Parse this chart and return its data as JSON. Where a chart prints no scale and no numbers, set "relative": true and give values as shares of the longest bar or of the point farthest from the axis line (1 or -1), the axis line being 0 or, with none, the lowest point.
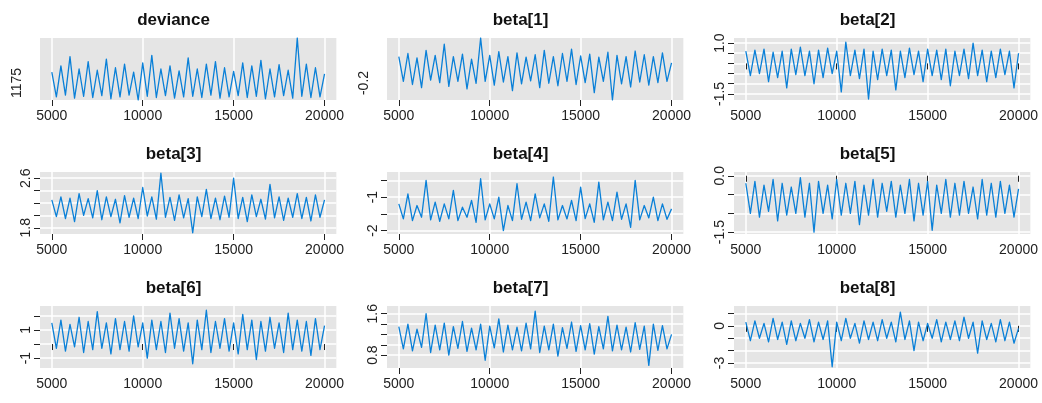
{
  "chart_data": [
    {
      "type": "line",
      "title": "deviance",
      "relative": true,
      "color": "#0a80d8",
      "grid": true,
      "marker": "none",
      "xlim": [
        4350,
        20650
      ],
      "xticks": [
        5000,
        10000,
        15000,
        20000
      ],
      "annotations": [
        "1175"
      ],
      "x": [
        5000,
        5250,
        5500,
        5750,
        6000,
        6250,
        6500,
        6750,
        7000,
        7250,
        7500,
        7750,
        8000,
        8250,
        8500,
        8750,
        9000,
        9250,
        9500,
        9750,
        10000,
        10250,
        10500,
        10750,
        11000,
        11250,
        11500,
        11750,
        12000,
        12250,
        12500,
        12750,
        13000,
        13250,
        13500,
        13750,
        14000,
        14250,
        14500,
        14750,
        15000,
        15250,
        15500,
        15750,
        16000,
        16250,
        16500,
        16750,
        17000,
        17250,
        17500,
        17750,
        18000,
        18250,
        18500,
        18750,
        19000,
        19250,
        19500,
        19750,
        20000
      ],
      "values": [
        0.45,
        0.05,
        0.55,
        0.08,
        0.7,
        0.03,
        0.5,
        0.06,
        0.62,
        0.04,
        0.48,
        0.07,
        0.66,
        0.02,
        0.52,
        0.05,
        0.58,
        0.08,
        0.45,
        0.0,
        0.6,
        0.06,
        0.72,
        0.04,
        0.5,
        0.07,
        0.55,
        0.03,
        0.47,
        0.05,
        0.68,
        0.06,
        0.5,
        0.04,
        0.58,
        0.08,
        0.62,
        0.03,
        0.52,
        0.05,
        0.46,
        0.07,
        0.6,
        0.04,
        0.55,
        0.06,
        0.64,
        0.02,
        0.5,
        0.05,
        0.57,
        0.07,
        0.48,
        0.03,
        1.0,
        0.06,
        0.58,
        0.04,
        0.52,
        0.05,
        0.42
      ]
    },
    {
      "type": "line",
      "title": "beta[1]",
      "relative": true,
      "color": "#0a80d8",
      "grid": true,
      "marker": "none",
      "xlim": [
        4350,
        20650
      ],
      "xticks": [
        5000,
        10000,
        15000,
        20000
      ],
      "annotations": [
        "-0.2"
      ],
      "x": [
        5000,
        5250,
        5500,
        5750,
        6000,
        6250,
        6500,
        6750,
        7000,
        7250,
        7500,
        7750,
        8000,
        8250,
        8500,
        8750,
        9000,
        9250,
        9500,
        9750,
        10000,
        10250,
        10500,
        10750,
        11000,
        11250,
        11500,
        11750,
        12000,
        12250,
        12500,
        12750,
        13000,
        13250,
        13500,
        13750,
        14000,
        14250,
        14500,
        14750,
        15000,
        15250,
        15500,
        15750,
        16000,
        16250,
        16500,
        16750,
        17000,
        17250,
        17500,
        17750,
        18000,
        18250,
        18500,
        18750,
        19000,
        19250,
        19500,
        19750,
        20000
      ],
      "values": [
        0.7,
        0.3,
        0.75,
        0.25,
        0.68,
        0.2,
        0.8,
        0.32,
        0.72,
        0.28,
        0.9,
        0.22,
        0.7,
        0.3,
        0.74,
        0.18,
        0.66,
        0.27,
        1.0,
        0.3,
        0.72,
        0.24,
        0.78,
        0.29,
        0.7,
        0.15,
        0.76,
        0.26,
        0.69,
        0.31,
        0.73,
        0.2,
        0.8,
        0.27,
        0.7,
        0.23,
        0.75,
        0.3,
        0.82,
        0.25,
        0.71,
        0.28,
        0.74,
        0.12,
        0.69,
        0.3,
        0.77,
        0.0,
        0.72,
        0.26,
        0.7,
        0.21,
        0.79,
        0.29,
        0.73,
        0.24,
        0.7,
        0.28,
        0.76,
        0.3,
        0.6
      ]
    },
    {
      "type": "line",
      "title": "beta[2]",
      "color": "#0a80d8",
      "grid": true,
      "marker": "none",
      "xlim": [
        4350,
        20650
      ],
      "xticks": [
        5000,
        10000,
        15000,
        20000
      ],
      "ylim": [
        -1.8,
        1.25
      ],
      "yticks": [
        {
          "value": 1,
          "label": "1.0"
        },
        {
          "value": 0.5,
          "label": null
        },
        {
          "value": 0,
          "label": null
        },
        {
          "value": -0.5,
          "label": null
        },
        {
          "value": -1,
          "label": null
        },
        -1.5
      ],
      "x": [
        5000,
        5250,
        5500,
        5750,
        6000,
        6250,
        6500,
        6750,
        7000,
        7250,
        7500,
        7750,
        8000,
        8250,
        8500,
        8750,
        9000,
        9250,
        9500,
        9750,
        10000,
        10250,
        10500,
        10750,
        11000,
        11250,
        11500,
        11750,
        12000,
        12250,
        12500,
        12750,
        13000,
        13250,
        13500,
        13750,
        14000,
        14250,
        14500,
        14750,
        15000,
        15250,
        15500,
        15750,
        16000,
        16250,
        16500,
        16750,
        17000,
        17250,
        17500,
        17750,
        18000,
        18250,
        18500,
        18750,
        19000,
        19250,
        19500,
        19750,
        20000
      ],
      "values": [
        0.6,
        -0.6,
        0.65,
        -0.5,
        0.7,
        -0.9,
        0.55,
        -0.7,
        0.6,
        -1.2,
        0.7,
        -0.55,
        0.8,
        -0.6,
        0.6,
        -1.0,
        0.65,
        -0.7,
        0.75,
        -0.5,
        0.6,
        -1.4,
        1.05,
        -0.6,
        0.65,
        -0.75,
        0.7,
        -1.75,
        0.6,
        -0.8,
        0.7,
        -0.6,
        0.65,
        -1.3,
        0.6,
        -0.7,
        0.75,
        -0.55,
        0.6,
        -0.9,
        0.7,
        -0.6,
        0.65,
        -0.8,
        0.7,
        -1.1,
        0.6,
        -0.6,
        0.7,
        -0.75,
        1.0,
        -0.6,
        0.65,
        -0.9,
        0.6,
        -0.7,
        0.7,
        -0.55,
        0.6,
        -1.2,
        0.5
      ]
    },
    {
      "type": "line",
      "title": "beta[3]",
      "color": "#0a80d8",
      "grid": true,
      "marker": "none",
      "xlim": [
        4350,
        20650
      ],
      "xticks": [
        5000,
        10000,
        15000,
        20000
      ],
      "ylim": [
        1.7,
        2.7
      ],
      "yticks": [
        2.6,
        {
          "value": 2.4,
          "label": null
        },
        {
          "value": 2.2,
          "label": null
        },
        {
          "value": 2,
          "label": null
        },
        1.8
      ],
      "x": [
        5000,
        5250,
        5500,
        5750,
        6000,
        6250,
        6500,
        6750,
        7000,
        7250,
        7500,
        7750,
        8000,
        8250,
        8500,
        8750,
        9000,
        9250,
        9500,
        9750,
        10000,
        10250,
        10500,
        10750,
        11000,
        11250,
        11500,
        11750,
        12000,
        12250,
        12500,
        12750,
        13000,
        13250,
        13500,
        13750,
        14000,
        14250,
        14500,
        14750,
        15000,
        15250,
        15500,
        15750,
        16000,
        16250,
        16500,
        16750,
        17000,
        17250,
        17500,
        17750,
        18000,
        18250,
        18500,
        18750,
        19000,
        19250,
        19500,
        19750,
        20000
      ],
      "values": [
        2.25,
        1.98,
        2.3,
        1.95,
        2.28,
        1.9,
        2.35,
        2.0,
        2.27,
        1.96,
        2.4,
        1.93,
        2.3,
        1.98,
        2.26,
        1.88,
        2.32,
        1.97,
        2.28,
        1.95,
        2.45,
        1.99,
        2.3,
        1.94,
        2.68,
        1.97,
        2.29,
        1.92,
        2.33,
        1.96,
        2.27,
        1.72,
        2.3,
        1.98,
        2.42,
        1.95,
        2.28,
        1.93,
        2.31,
        1.97,
        2.6,
        1.95,
        2.29,
        1.9,
        2.33,
        1.98,
        2.26,
        1.94,
        2.5,
        1.96,
        2.3,
        1.92,
        2.28,
        1.97,
        2.35,
        1.95,
        2.29,
        1.91,
        2.33,
        1.97,
        2.25
      ]
    },
    {
      "type": "line",
      "title": "beta[4]",
      "color": "#0a80d8",
      "grid": true,
      "marker": "none",
      "xlim": [
        4350,
        20650
      ],
      "xticks": [
        5000,
        10000,
        15000,
        20000
      ],
      "ylim": [
        -2.1,
        -0.25
      ],
      "yticks": [
        {
          "value": -0.5,
          "label": null
        },
        -1,
        {
          "value": -1.5,
          "label": null
        },
        -2
      ],
      "x": [
        5000,
        5250,
        5500,
        5750,
        6000,
        6250,
        6500,
        6750,
        7000,
        7250,
        7500,
        7750,
        8000,
        8250,
        8500,
        8750,
        9000,
        9250,
        9500,
        9750,
        10000,
        10250,
        10500,
        10750,
        11000,
        11250,
        11500,
        11750,
        12000,
        12250,
        12500,
        12750,
        13000,
        13250,
        13500,
        13750,
        14000,
        14250,
        14500,
        14750,
        15000,
        15250,
        15500,
        15750,
        16000,
        16250,
        16500,
        16750,
        17000,
        17250,
        17500,
        17750,
        18000,
        18250,
        18500,
        18750,
        19000,
        19250,
        19500,
        19750,
        20000
      ],
      "values": [
        -1.2,
        -1.65,
        -0.9,
        -1.7,
        -1.25,
        -1.6,
        -0.5,
        -1.68,
        -1.15,
        -1.72,
        -1.2,
        -1.65,
        -0.8,
        -1.7,
        -1.3,
        -1.6,
        -1.1,
        -1.75,
        -0.45,
        -1.68,
        -1.2,
        -1.65,
        -1.0,
        -2.0,
        -1.25,
        -1.7,
        -0.6,
        -1.66,
        -1.15,
        -1.7,
        -0.9,
        -1.62,
        -1.2,
        -1.72,
        -0.4,
        -1.68,
        -1.25,
        -1.65,
        -1.1,
        -1.7,
        -0.7,
        -1.64,
        -1.2,
        -1.75,
        -0.55,
        -1.68,
        -1.15,
        -1.7,
        -0.85,
        -1.66,
        -1.2,
        -1.9,
        -0.5,
        -1.68,
        -1.25,
        -1.62,
        -1.0,
        -1.7,
        -1.2,
        -1.66,
        -1.35
      ]
    },
    {
      "type": "line",
      "title": "beta[5]",
      "color": "#0a80d8",
      "grid": true,
      "marker": "none",
      "xlim": [
        4350,
        20650
      ],
      "xticks": [
        5000,
        10000,
        15000,
        20000
      ],
      "ylim": [
        -1.55,
        0.1
      ],
      "yticks": [
        {
          "value": 0,
          "label": "0.0"
        },
        {
          "value": -0.5,
          "label": null
        },
        {
          "value": -1,
          "label": null
        },
        -1.5
      ],
      "x": [
        5000,
        5250,
        5500,
        5750,
        6000,
        6250,
        6500,
        6750,
        7000,
        7250,
        7500,
        7750,
        8000,
        8250,
        8500,
        8750,
        9000,
        9250,
        9500,
        9750,
        10000,
        10250,
        10500,
        10750,
        11000,
        11250,
        11500,
        11750,
        12000,
        12250,
        12500,
        12750,
        13000,
        13250,
        13500,
        13750,
        14000,
        14250,
        14500,
        14750,
        15000,
        15250,
        15500,
        15750,
        16000,
        16250,
        16500,
        16750,
        17000,
        17250,
        17500,
        17750,
        18000,
        18250,
        18500,
        18750,
        19000,
        19250,
        19500,
        19750,
        20000
      ],
      "values": [
        -0.2,
        -1.0,
        -0.15,
        -1.1,
        -0.25,
        -0.95,
        -0.1,
        -1.2,
        -0.2,
        -1.05,
        -0.3,
        -1.0,
        -0.05,
        -1.1,
        -0.2,
        -1.5,
        -0.15,
        -1.0,
        -0.25,
        -1.15,
        -0.1,
        -1.05,
        -0.2,
        -1.0,
        -0.15,
        -1.3,
        -0.25,
        -1.05,
        -0.1,
        -1.1,
        -0.2,
        -0.95,
        -0.15,
        -1.1,
        -0.25,
        -1.0,
        -0.1,
        -1.2,
        -0.2,
        -1.05,
        -0.15,
        -1.45,
        -0.25,
        -1.0,
        -0.1,
        -1.1,
        -0.2,
        -1.05,
        -0.15,
        -1.0,
        -0.3,
        -1.15,
        -0.1,
        -1.05,
        -0.2,
        -1.1,
        -0.15,
        -1.0,
        -0.25,
        -1.1,
        -0.35
      ]
    },
    {
      "type": "line",
      "title": "beta[6]",
      "color": "#0a80d8",
      "grid": true,
      "marker": "none",
      "xlim": [
        4350,
        20650
      ],
      "xticks": [
        5000,
        10000,
        15000,
        20000
      ],
      "ylim": [
        -1.7,
        2.7
      ],
      "yticks": [
        {
          "value": 2,
          "label": null
        },
        1,
        {
          "value": 0,
          "label": null
        },
        -1
      ],
      "x": [
        5000,
        5250,
        5500,
        5750,
        6000,
        6250,
        6500,
        6750,
        7000,
        7250,
        7500,
        7750,
        8000,
        8250,
        8500,
        8750,
        9000,
        9250,
        9500,
        9750,
        10000,
        10250,
        10500,
        10750,
        11000,
        11250,
        11500,
        11750,
        12000,
        12250,
        12500,
        12750,
        13000,
        13250,
        13500,
        13750,
        14000,
        14250,
        14500,
        14750,
        15000,
        15250,
        15500,
        15750,
        16000,
        16250,
        16500,
        16750,
        17000,
        17250,
        17500,
        17750,
        18000,
        18250,
        18500,
        18750,
        19000,
        19250,
        19500,
        19750,
        20000
      ],
      "values": [
        1.5,
        -0.3,
        1.7,
        -0.5,
        1.4,
        -0.2,
        1.9,
        -0.6,
        1.6,
        -0.4,
        2.3,
        -0.3,
        1.5,
        -0.7,
        1.8,
        -0.4,
        1.6,
        -0.5,
        2.0,
        -0.2,
        1.5,
        -1.0,
        1.7,
        -0.4,
        1.6,
        -0.6,
        2.2,
        -0.3,
        1.8,
        -0.5,
        1.5,
        -1.4,
        1.7,
        -0.4,
        2.4,
        -0.6,
        1.6,
        -0.3,
        1.8,
        -0.5,
        1.5,
        -0.7,
        2.1,
        -0.4,
        1.7,
        -1.1,
        1.6,
        -0.5,
        1.9,
        -0.3,
        1.5,
        -0.6,
        2.2,
        -0.4,
        1.7,
        -0.5,
        1.6,
        -0.8,
        1.8,
        -0.4,
        1.3
      ]
    },
    {
      "type": "line",
      "title": "beta[7]",
      "color": "#0a80d8",
      "grid": true,
      "marker": "none",
      "xlim": [
        4350,
        20650
      ],
      "xticks": [
        5000,
        10000,
        15000,
        20000
      ],
      "ylim": [
        0.55,
        1.75
      ],
      "yticks": [
        1.6,
        {
          "value": 1.4,
          "label": null
        },
        {
          "value": 1.2,
          "label": null
        },
        {
          "value": 1,
          "label": null
        },
        0.8
      ],
      "x": [
        5000,
        5250,
        5500,
        5750,
        6000,
        6250,
        6500,
        6750,
        7000,
        7250,
        7500,
        7750,
        8000,
        8250,
        8500,
        8750,
        9000,
        9250,
        9500,
        9750,
        10000,
        10250,
        10500,
        10750,
        11000,
        11250,
        11500,
        11750,
        12000,
        12250,
        12500,
        12750,
        13000,
        13250,
        13500,
        13750,
        14000,
        14250,
        14500,
        14750,
        15000,
        15250,
        15500,
        15750,
        16000,
        16250,
        16500,
        16750,
        17000,
        17250,
        17500,
        17750,
        18000,
        18250,
        18500,
        18750,
        19000,
        19250,
        19500,
        19750,
        20000
      ],
      "values": [
        1.35,
        0.92,
        1.4,
        0.88,
        1.3,
        0.95,
        1.6,
        0.85,
        1.38,
        0.9,
        1.42,
        0.8,
        1.35,
        0.93,
        1.45,
        0.87,
        1.32,
        0.9,
        1.4,
        0.7,
        1.36,
        0.94,
        1.5,
        0.86,
        1.38,
        0.9,
        1.34,
        0.88,
        1.42,
        0.92,
        1.65,
        0.85,
        1.36,
        0.9,
        1.4,
        0.78,
        1.33,
        0.93,
        1.44,
        0.87,
        1.37,
        0.9,
        1.41,
        0.82,
        1.35,
        0.92,
        1.55,
        0.88,
        1.38,
        0.9,
        1.34,
        0.86,
        1.43,
        0.91,
        1.36,
        0.6,
        1.4,
        0.89,
        1.37,
        0.92,
        1.2
      ]
    },
    {
      "type": "line",
      "title": "beta[8]",
      "color": "#0a80d8",
      "grid": true,
      "marker": "none",
      "xlim": [
        4350,
        20650
      ],
      "xticks": [
        5000,
        10000,
        15000,
        20000
      ],
      "ylim": [
        -3.4,
        1.6
      ],
      "yticks": [
        {
          "value": 1,
          "label": null
        },
        0,
        {
          "value": -1,
          "label": null
        },
        {
          "value": -2,
          "label": null
        },
        -3
      ],
      "x": [
        5000,
        5250,
        5500,
        5750,
        6000,
        6250,
        6500,
        6750,
        7000,
        7250,
        7500,
        7750,
        8000,
        8250,
        8500,
        8750,
        9000,
        9250,
        9500,
        9750,
        10000,
        10250,
        10500,
        10750,
        11000,
        11250,
        11500,
        11750,
        12000,
        12250,
        12500,
        12750,
        13000,
        13250,
        13500,
        13750,
        14000,
        14250,
        14500,
        14750,
        15000,
        15250,
        15500,
        15750,
        16000,
        16250,
        16500,
        16750,
        17000,
        17250,
        17500,
        17750,
        18000,
        18250,
        18500,
        18750,
        19000,
        19250,
        19500,
        19750,
        20000
      ],
      "values": [
        0.3,
        -1.2,
        0.4,
        -1.0,
        0.2,
        -1.3,
        0.6,
        -1.1,
        0.3,
        -1.5,
        0.4,
        -1.2,
        0.2,
        -1.0,
        0.5,
        -1.3,
        0.3,
        -1.1,
        0.4,
        -3.3,
        0.3,
        -1.2,
        0.6,
        -1.0,
        0.2,
        -1.4,
        0.4,
        -1.1,
        0.3,
        -1.2,
        0.5,
        -1.0,
        0.3,
        -1.3,
        1.1,
        -1.1,
        0.4,
        -2.0,
        0.3,
        -1.2,
        0.2,
        -1.0,
        0.5,
        -1.3,
        0.3,
        -1.1,
        0.4,
        -1.2,
        0.7,
        -1.0,
        0.3,
        -2.2,
        0.4,
        -1.1,
        0.2,
        -1.3,
        0.5,
        -1.2,
        0.3,
        -1.4,
        -0.2
      ]
    }
  ]
}
